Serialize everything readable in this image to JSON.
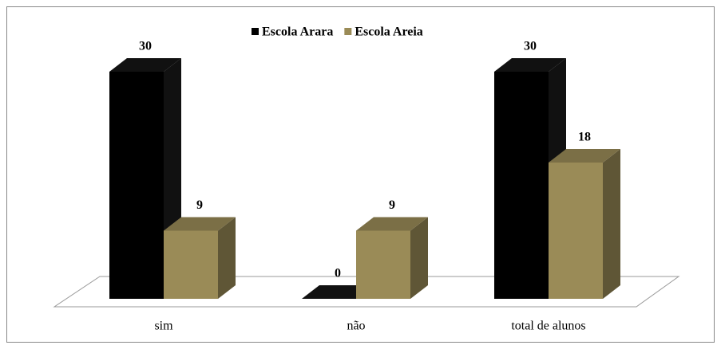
{
  "chart_data": {
    "type": "bar3d",
    "categories": [
      "sim",
      "não",
      "total de alunos"
    ],
    "series": [
      {
        "name": "Escola Arara",
        "color": "#000000",
        "values": [
          30,
          0,
          30
        ]
      },
      {
        "name": "Escola Areia",
        "color": "#9a8b57",
        "values": [
          9,
          9,
          18
        ]
      }
    ],
    "legend": "top"
  }
}
